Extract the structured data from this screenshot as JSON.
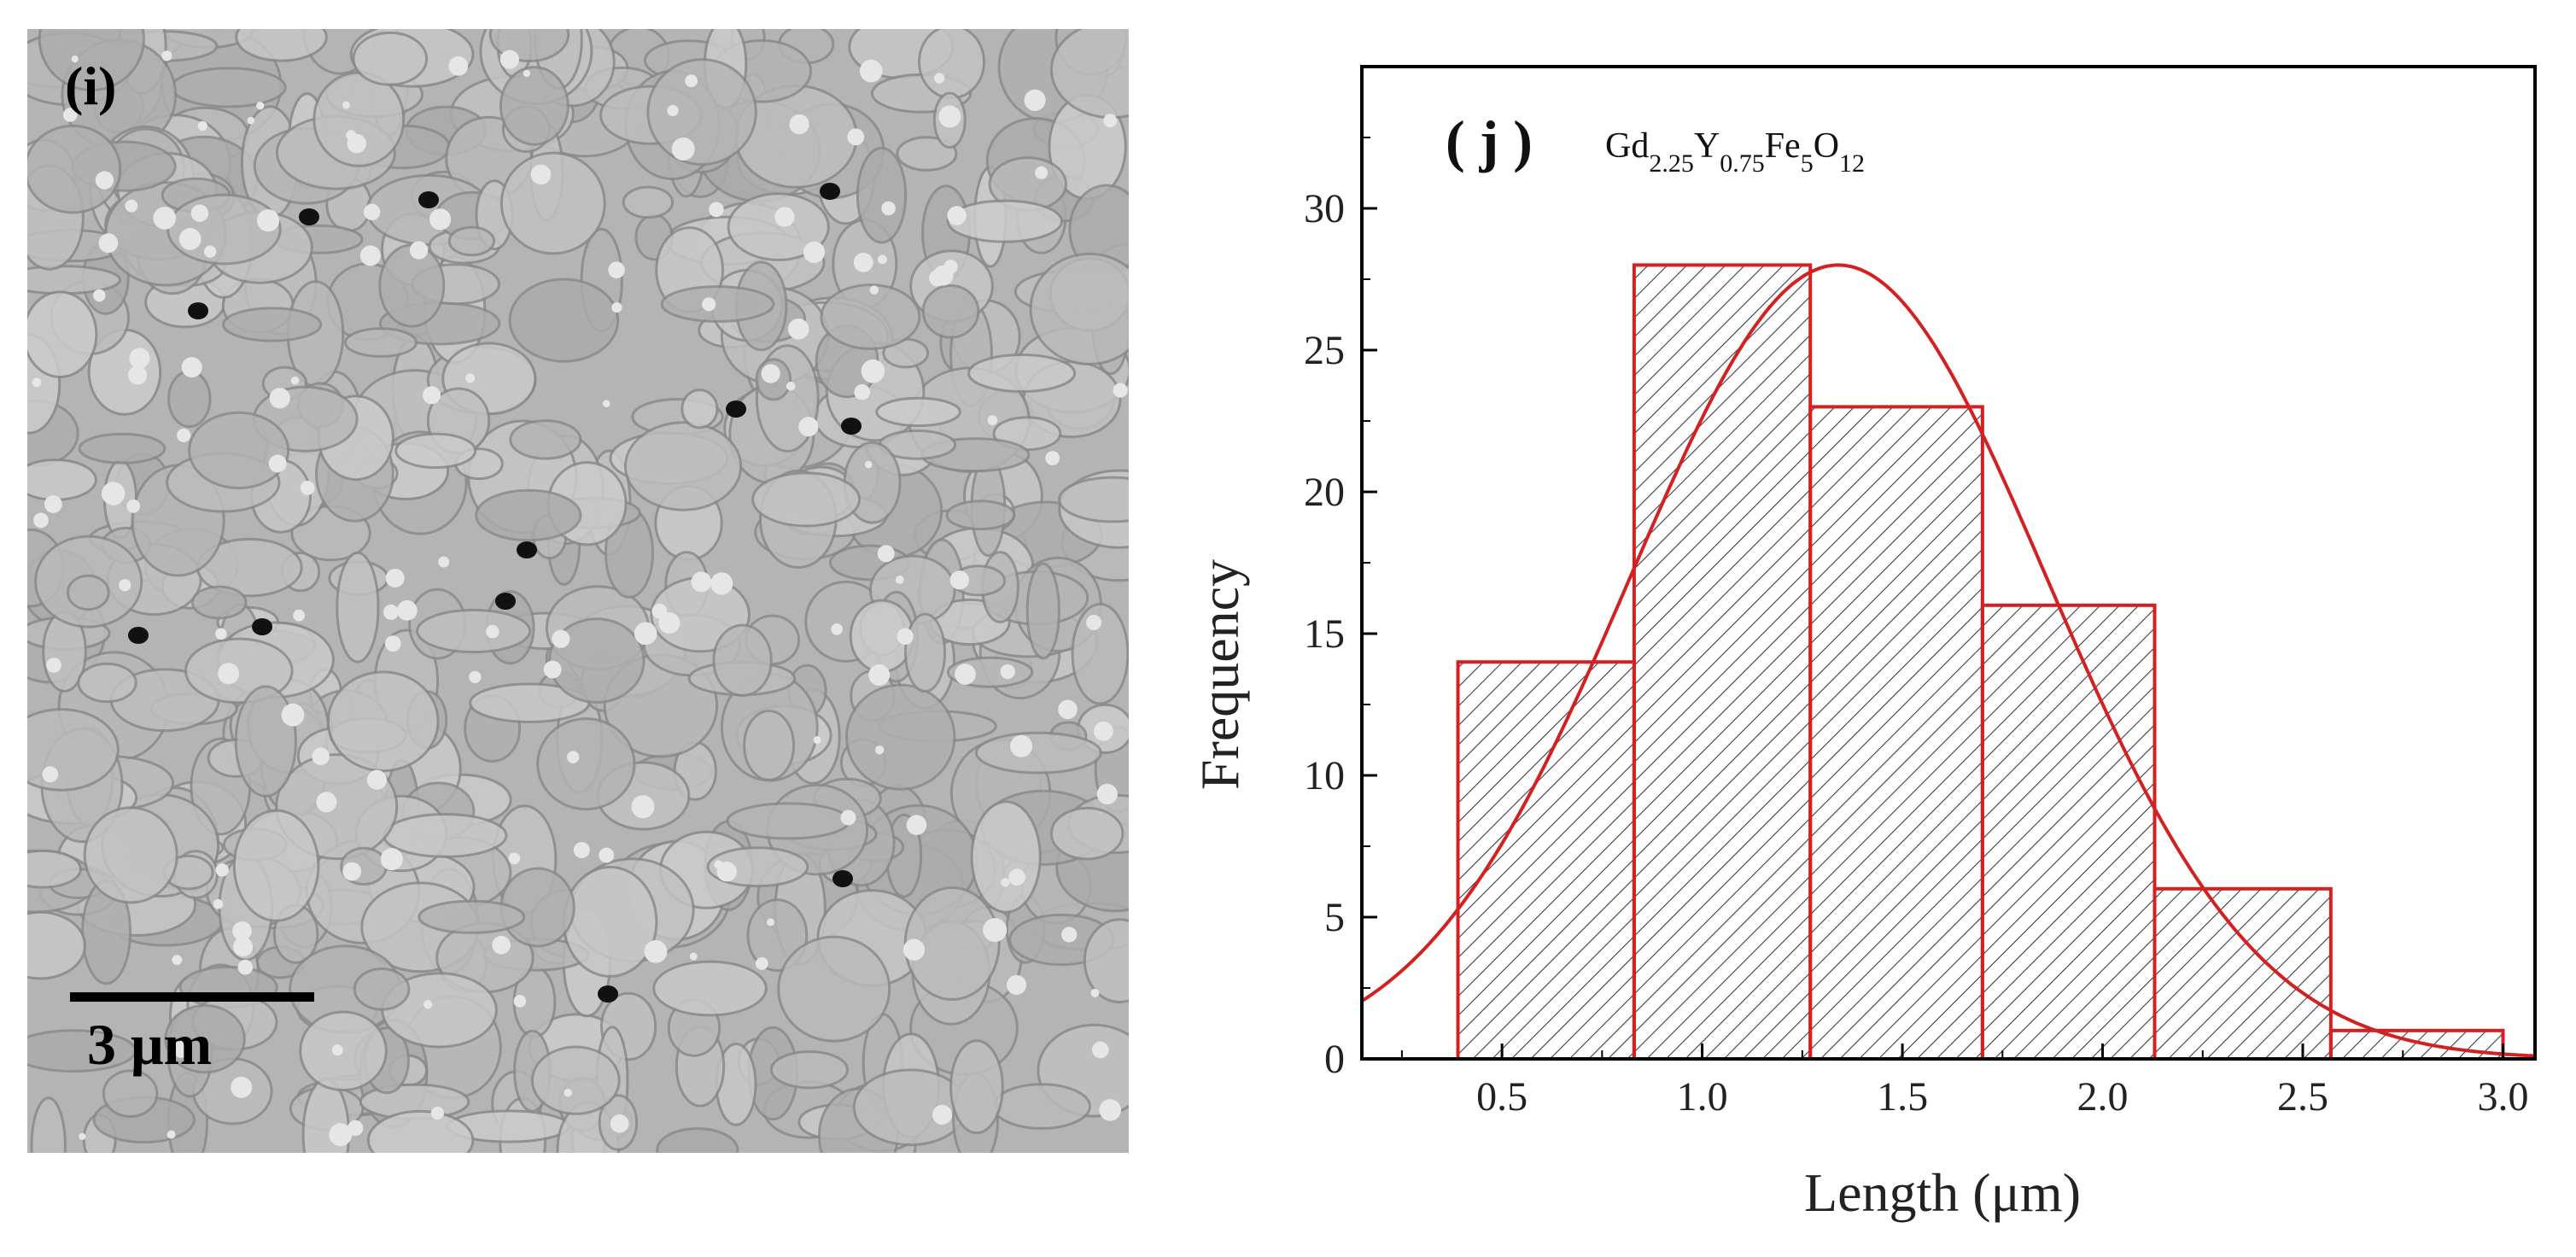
{
  "sem": {
    "panel_label": "(i)",
    "scale_label": "3 μm"
  },
  "chart_data": {
    "type": "bar",
    "panel_label": "( j )",
    "annotation": {
      "base": [
        "Gd",
        "Y",
        "Fe",
        "O"
      ],
      "subscripts": [
        "2.25",
        "0.75",
        "5",
        "12"
      ]
    },
    "xlabel": "Length (μm)",
    "ylabel": "Frequency",
    "xlim": [
      0.15,
      3.08
    ],
    "ylim": [
      0,
      35
    ],
    "xticks": [
      "0.5",
      "1.0",
      "1.5",
      "2.0",
      "2.5",
      "3.0"
    ],
    "xtick_values": [
      0.5,
      1.0,
      1.5,
      2.0,
      2.5,
      3.0
    ],
    "yticks": [
      "0",
      "5",
      "10",
      "15",
      "20",
      "25",
      "30"
    ],
    "ytick_values": [
      0,
      5,
      10,
      15,
      20,
      25,
      30
    ],
    "bins": [
      {
        "x0": 0.39,
        "x1": 0.83,
        "value": 14
      },
      {
        "x0": 0.83,
        "x1": 1.27,
        "value": 28
      },
      {
        "x0": 1.27,
        "x1": 1.7,
        "value": 23
      },
      {
        "x0": 1.7,
        "x1": 2.13,
        "value": 16
      },
      {
        "x0": 2.13,
        "x1": 2.57,
        "value": 6
      },
      {
        "x0": 2.57,
        "x1": 3.0,
        "value": 1
      }
    ],
    "fit": {
      "type": "gaussian",
      "peak": 28,
      "mean": 1.34,
      "sigma": 0.52
    },
    "colors": {
      "bar_edge": "#d42020",
      "hatch": "#3a3a4a",
      "fit": "#d42020",
      "axis": "#000000"
    }
  }
}
